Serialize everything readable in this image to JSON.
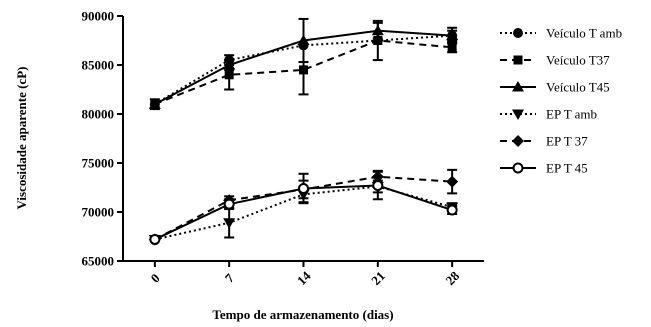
{
  "chart_data": {
    "type": "line",
    "xlabel": "Tempo de armazenamento (dias)",
    "ylabel": "Viscosidade aparente (cP)",
    "x": [
      0,
      7,
      14,
      21,
      28
    ],
    "xlim": [
      -3,
      31
    ],
    "ylim": [
      65000,
      90000
    ],
    "yticks": [
      65000,
      70000,
      75000,
      80000,
      85000,
      90000
    ],
    "grid": false,
    "legend_position": "right",
    "series": [
      {
        "name": "Veículo T amb",
        "marker": "circle",
        "dash": "dotted",
        "values": [
          81000,
          85500,
          87000,
          87500,
          88000
        ],
        "errors": [
          0,
          500,
          0,
          0,
          500
        ]
      },
      {
        "name": "Veículo T37",
        "marker": "square",
        "dash": "dashed",
        "values": [
          81000,
          84000,
          84500,
          87500,
          86800
        ],
        "errors": [
          500,
          1500,
          2500,
          2000,
          500
        ]
      },
      {
        "name": "Veículo T45",
        "marker": "triangle-up",
        "dash": "solid",
        "values": [
          81000,
          85000,
          87500,
          88500,
          88000
        ],
        "errors": [
          0,
          500,
          2200,
          800,
          800
        ]
      },
      {
        "name": "EP T amb",
        "marker": "triangle-down",
        "dash": "dotted",
        "values": [
          67200,
          68900,
          71800,
          72600,
          70500
        ],
        "errors": [
          0,
          1500,
          800,
          600,
          400
        ]
      },
      {
        "name": "EP T 37",
        "marker": "diamond",
        "dash": "dashed",
        "values": [
          67200,
          71200,
          72300,
          73600,
          73100
        ],
        "errors": [
          0,
          400,
          900,
          600,
          1200
        ]
      },
      {
        "name": "EP T 45",
        "marker": "circle-open",
        "dash": "solid",
        "values": [
          67200,
          70800,
          72400,
          72700,
          70200
        ],
        "errors": [
          0,
          500,
          1500,
          1400,
          400
        ]
      }
    ]
  }
}
